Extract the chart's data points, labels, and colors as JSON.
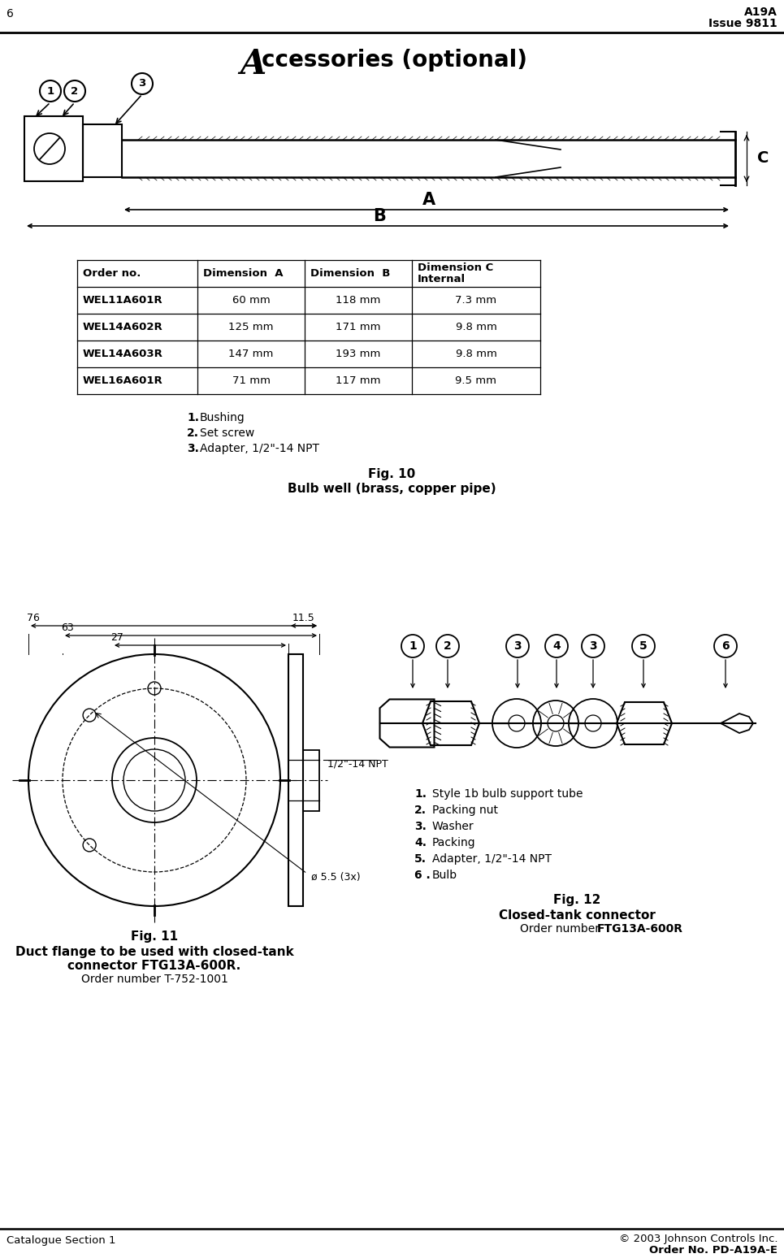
{
  "page_number": "6",
  "header_title": "A19A",
  "header_subtitle": "Issue 9811",
  "footer_left": "Catalogue Section 1",
  "footer_right1": "© 2003 Johnson Controls Inc.",
  "footer_right2": "Order No. PD-A19A-E",
  "table_headers": [
    "Order no.",
    "Dimension  A",
    "Dimension  B",
    "Dimension C\nInternal"
  ],
  "table_rows": [
    [
      "WEL11A601R",
      "60 mm",
      "118 mm",
      "7.3 mm"
    ],
    [
      "WEL14A602R",
      "125 mm",
      "171 mm",
      "9.8 mm"
    ],
    [
      "WEL14A603R",
      "147 mm",
      "193 mm",
      "9.8 mm"
    ],
    [
      "WEL16A601R",
      "71 mm",
      "117 mm",
      "9.5 mm"
    ]
  ],
  "fig10_items": [
    "1. Bushing",
    "2. Set screw",
    "3. Adapter, 1/2\"-14 NPT"
  ],
  "fig10_title": "Fig. 10",
  "fig10_caption": "Bulb well (brass, copper pipe)",
  "fig11_title": "Fig. 11",
  "fig11_cap1": "Duct flange to be used with closed-tank",
  "fig11_cap2": "connector FTG13A-600R.",
  "fig11_cap3": "Order number T-752-1001",
  "fig11_dims": [
    "76",
    "63",
    "27",
    "11.5"
  ],
  "fig11_npt": "1/2\"-14 NPT",
  "fig11_holes": "ø 5.5 (3x)",
  "fig12_title": "Fig. 12",
  "fig12_cap1": "Closed-tank connector",
  "fig12_cap2": "Order number FTG13A-600R",
  "fig12_callouts": [
    "1",
    "2",
    "3",
    "4",
    "3",
    "5",
    "6"
  ],
  "fig12_items": [
    "1.  Style 1b bulb support tube",
    "2.  Packing nut",
    "3.  Washer",
    "4.  Packing",
    "5.  Adapter, 1/2\"-14 NPT",
    "6 . Bulb"
  ]
}
